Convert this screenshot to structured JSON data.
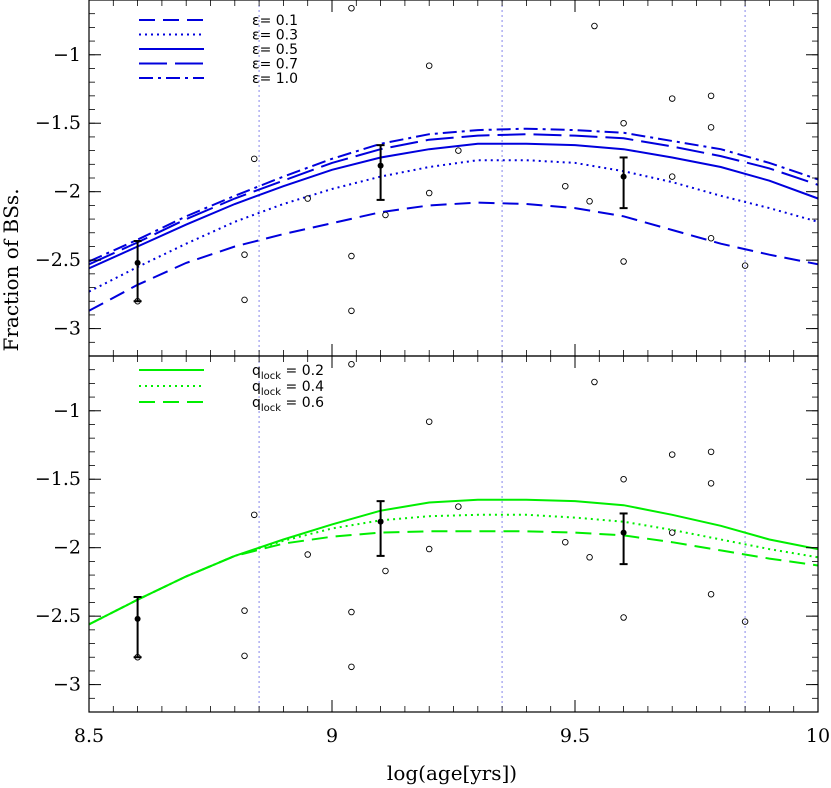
{
  "chart_data": [
    {
      "type": "line",
      "panel": "top",
      "xlabel": "log(age[yrs])",
      "ylabel": "Fraction of BSs.",
      "xlim": [
        8.5,
        10.0
      ],
      "ylim": [
        -3.2,
        -0.6
      ],
      "xticks": [
        8.5,
        9,
        9.5,
        10
      ],
      "xtick_labels": [
        "8.5",
        "9",
        "9.5",
        "10"
      ],
      "yticks": [
        -3,
        -2.5,
        -2,
        -1.5,
        -1
      ],
      "ytick_labels": [
        "−3",
        "−2.5",
        "−2",
        "−1.5",
        "−1"
      ],
      "grid": false,
      "legend_position": "top-left",
      "legend_symbol": "ε",
      "vlines": [
        8.85,
        9.35,
        9.85
      ],
      "x": [
        8.5,
        8.6,
        8.7,
        8.8,
        8.9,
        9.0,
        9.1,
        9.2,
        9.3,
        9.4,
        9.5,
        9.6,
        9.7,
        9.8,
        9.9,
        10.0
      ],
      "series": [
        {
          "name": "0.1",
          "dash": "dashed",
          "color": "#0000dd",
          "y": [
            -2.87,
            -2.68,
            -2.52,
            -2.4,
            -2.31,
            -2.23,
            -2.15,
            -2.1,
            -2.08,
            -2.09,
            -2.12,
            -2.18,
            -2.28,
            -2.38,
            -2.46,
            -2.53
          ]
        },
        {
          "name": "0.3",
          "dash": "dotted",
          "color": "#0000dd",
          "y": [
            -2.73,
            -2.55,
            -2.38,
            -2.22,
            -2.09,
            -1.98,
            -1.89,
            -1.82,
            -1.77,
            -1.77,
            -1.79,
            -1.85,
            -1.93,
            -2.03,
            -2.12,
            -2.22
          ]
        },
        {
          "name": "0.5",
          "dash": "solid",
          "color": "#0000dd",
          "y": [
            -2.56,
            -2.4,
            -2.24,
            -2.09,
            -1.96,
            -1.84,
            -1.75,
            -1.69,
            -1.65,
            -1.65,
            -1.66,
            -1.69,
            -1.75,
            -1.82,
            -1.92,
            -2.05
          ]
        },
        {
          "name": "0.7",
          "dash": "longdash",
          "color": "#0000dd",
          "y": [
            -2.53,
            -2.37,
            -2.2,
            -2.05,
            -1.92,
            -1.79,
            -1.69,
            -1.62,
            -1.59,
            -1.58,
            -1.59,
            -1.61,
            -1.67,
            -1.74,
            -1.83,
            -1.95
          ]
        },
        {
          "name": "1.0",
          "dash": "dashdot",
          "color": "#0000dd",
          "y": [
            -2.51,
            -2.35,
            -2.18,
            -2.03,
            -1.89,
            -1.76,
            -1.65,
            -1.58,
            -1.55,
            -1.54,
            -1.55,
            -1.57,
            -1.63,
            -1.69,
            -1.79,
            -1.91
          ]
        }
      ],
      "observed_points": [
        {
          "x": 8.6,
          "y": -2.52,
          "err_lo": 0.28,
          "err_hi": 0.16
        },
        {
          "x": 9.1,
          "y": -1.81,
          "err_lo": 0.25,
          "err_hi": 0.15
        },
        {
          "x": 9.6,
          "y": -1.89,
          "err_lo": 0.23,
          "err_hi": 0.14
        }
      ],
      "scatter": [
        [
          8.6,
          -2.8
        ],
        [
          8.82,
          -2.46
        ],
        [
          8.82,
          -2.79
        ],
        [
          8.84,
          -1.76
        ],
        [
          8.95,
          -2.05
        ],
        [
          9.04,
          -0.66
        ],
        [
          9.04,
          -2.47
        ],
        [
          9.04,
          -2.87
        ],
        [
          9.11,
          -2.17
        ],
        [
          9.2,
          -1.08
        ],
        [
          9.2,
          -2.01
        ],
        [
          9.26,
          -1.7
        ],
        [
          9.48,
          -1.96
        ],
        [
          9.53,
          -2.07
        ],
        [
          9.54,
          -0.79
        ],
        [
          9.6,
          -1.5
        ],
        [
          9.6,
          -2.51
        ],
        [
          9.7,
          -1.32
        ],
        [
          9.7,
          -1.89
        ],
        [
          9.78,
          -1.3
        ],
        [
          9.78,
          -1.53
        ],
        [
          9.78,
          -2.34
        ],
        [
          9.85,
          -2.54
        ]
      ]
    },
    {
      "type": "line",
      "panel": "bottom",
      "xlabel": "log(age[yrs])",
      "ylabel": "Fraction of BSs.",
      "xlim": [
        8.5,
        10.0
      ],
      "ylim": [
        -3.2,
        -0.6
      ],
      "xticks": [
        8.5,
        9,
        9.5,
        10
      ],
      "xtick_labels": [
        "8.5",
        "9",
        "9.5",
        "10"
      ],
      "yticks": [
        -3,
        -2.5,
        -2,
        -1.5,
        -1
      ],
      "ytick_labels": [
        "−3",
        "−2.5",
        "−2",
        "−1.5",
        "−1"
      ],
      "grid": false,
      "legend_position": "top-left",
      "legend_symbol": "q",
      "legend_subscript": "lock",
      "vlines": [
        8.85,
        9.35,
        9.85
      ],
      "x": [
        8.5,
        8.6,
        8.7,
        8.8,
        8.9,
        9.0,
        9.1,
        9.2,
        9.3,
        9.4,
        9.5,
        9.6,
        9.7,
        9.8,
        9.9,
        10.0
      ],
      "series": [
        {
          "name": "0.2",
          "dash": "solid",
          "color": "#00ee00",
          "y": [
            -2.56,
            -2.38,
            -2.21,
            -2.06,
            -1.94,
            -1.83,
            -1.73,
            -1.67,
            -1.65,
            -1.65,
            -1.66,
            -1.69,
            -1.76,
            -1.84,
            -1.94,
            -2.01
          ]
        },
        {
          "name": "0.4",
          "dash": "dotted",
          "color": "#00ee00",
          "y": [
            -2.56,
            -2.38,
            -2.21,
            -2.06,
            -1.95,
            -1.86,
            -1.8,
            -1.77,
            -1.76,
            -1.76,
            -1.78,
            -1.81,
            -1.87,
            -1.94,
            -2.01,
            -2.07
          ]
        },
        {
          "name": "0.6",
          "dash": "dashed",
          "color": "#00ee00",
          "y": [
            -2.56,
            -2.38,
            -2.21,
            -2.06,
            -1.97,
            -1.92,
            -1.89,
            -1.88,
            -1.88,
            -1.88,
            -1.89,
            -1.91,
            -1.96,
            -2.02,
            -2.08,
            -2.13
          ]
        }
      ],
      "observed_points": [
        {
          "x": 8.6,
          "y": -2.52,
          "err_lo": 0.28,
          "err_hi": 0.16
        },
        {
          "x": 9.1,
          "y": -1.81,
          "err_lo": 0.25,
          "err_hi": 0.15
        },
        {
          "x": 9.6,
          "y": -1.89,
          "err_lo": 0.23,
          "err_hi": 0.14
        }
      ],
      "scatter": [
        [
          8.6,
          -2.8
        ],
        [
          8.82,
          -2.46
        ],
        [
          8.82,
          -2.79
        ],
        [
          8.84,
          -1.76
        ],
        [
          8.95,
          -2.05
        ],
        [
          9.04,
          -0.66
        ],
        [
          9.04,
          -2.47
        ],
        [
          9.04,
          -2.87
        ],
        [
          9.11,
          -2.17
        ],
        [
          9.2,
          -1.08
        ],
        [
          9.2,
          -2.01
        ],
        [
          9.26,
          -1.7
        ],
        [
          9.48,
          -1.96
        ],
        [
          9.53,
          -2.07
        ],
        [
          9.54,
          -0.79
        ],
        [
          9.6,
          -1.5
        ],
        [
          9.6,
          -2.51
        ],
        [
          9.7,
          -1.32
        ],
        [
          9.7,
          -1.89
        ],
        [
          9.78,
          -1.3
        ],
        [
          9.78,
          -1.53
        ],
        [
          9.78,
          -2.34
        ],
        [
          9.85,
          -2.54
        ]
      ]
    }
  ],
  "colors": {
    "vline": "#9999ee",
    "axis": "#000000",
    "observed": "#000000"
  }
}
